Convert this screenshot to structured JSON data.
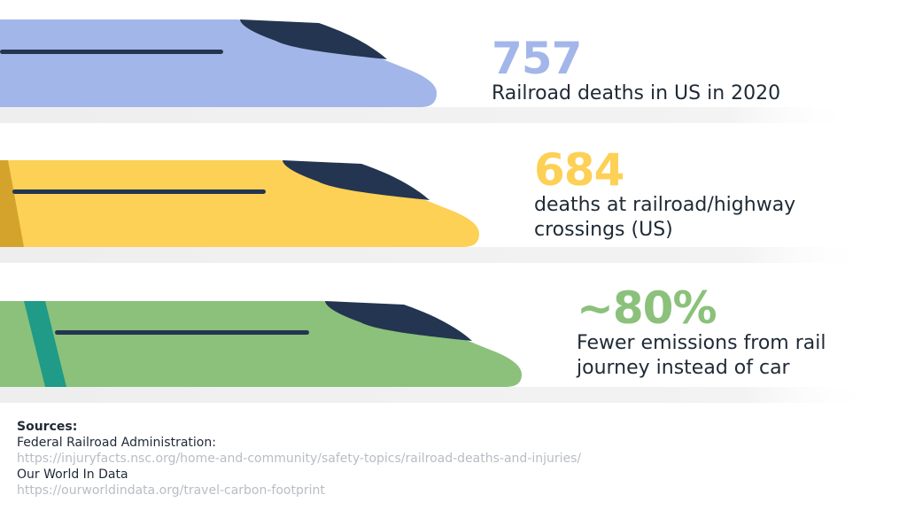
{
  "colors": {
    "blue": "#a3b6e9",
    "yellow": "#fdd056",
    "green": "#8bc17b",
    "navy": "#233550",
    "teal": "#1f9b87",
    "mustard": "#d4a32c",
    "text": "#1f2a36",
    "url": "#b8bdc4"
  },
  "stats": [
    {
      "value": "757",
      "label_lines": [
        "Railroad deaths in US in 2020"
      ]
    },
    {
      "value": "684",
      "label_lines": [
        "deaths at railroad/highway",
        "crossings (US)"
      ]
    },
    {
      "value": "~80%",
      "label_lines": [
        "Fewer emissions from rail",
        "journey instead of car"
      ]
    }
  ],
  "sources": {
    "heading": "Sources:",
    "items": [
      {
        "name": "Federal Railroad Administration:",
        "url": "https://injuryfacts.nsc.org/home-and-community/safety-topics/railroad-deaths-and-injuries/"
      },
      {
        "name": "Our World In Data",
        "url": "https://ourworldindata.org/travel-carbon-footprint"
      }
    ]
  }
}
